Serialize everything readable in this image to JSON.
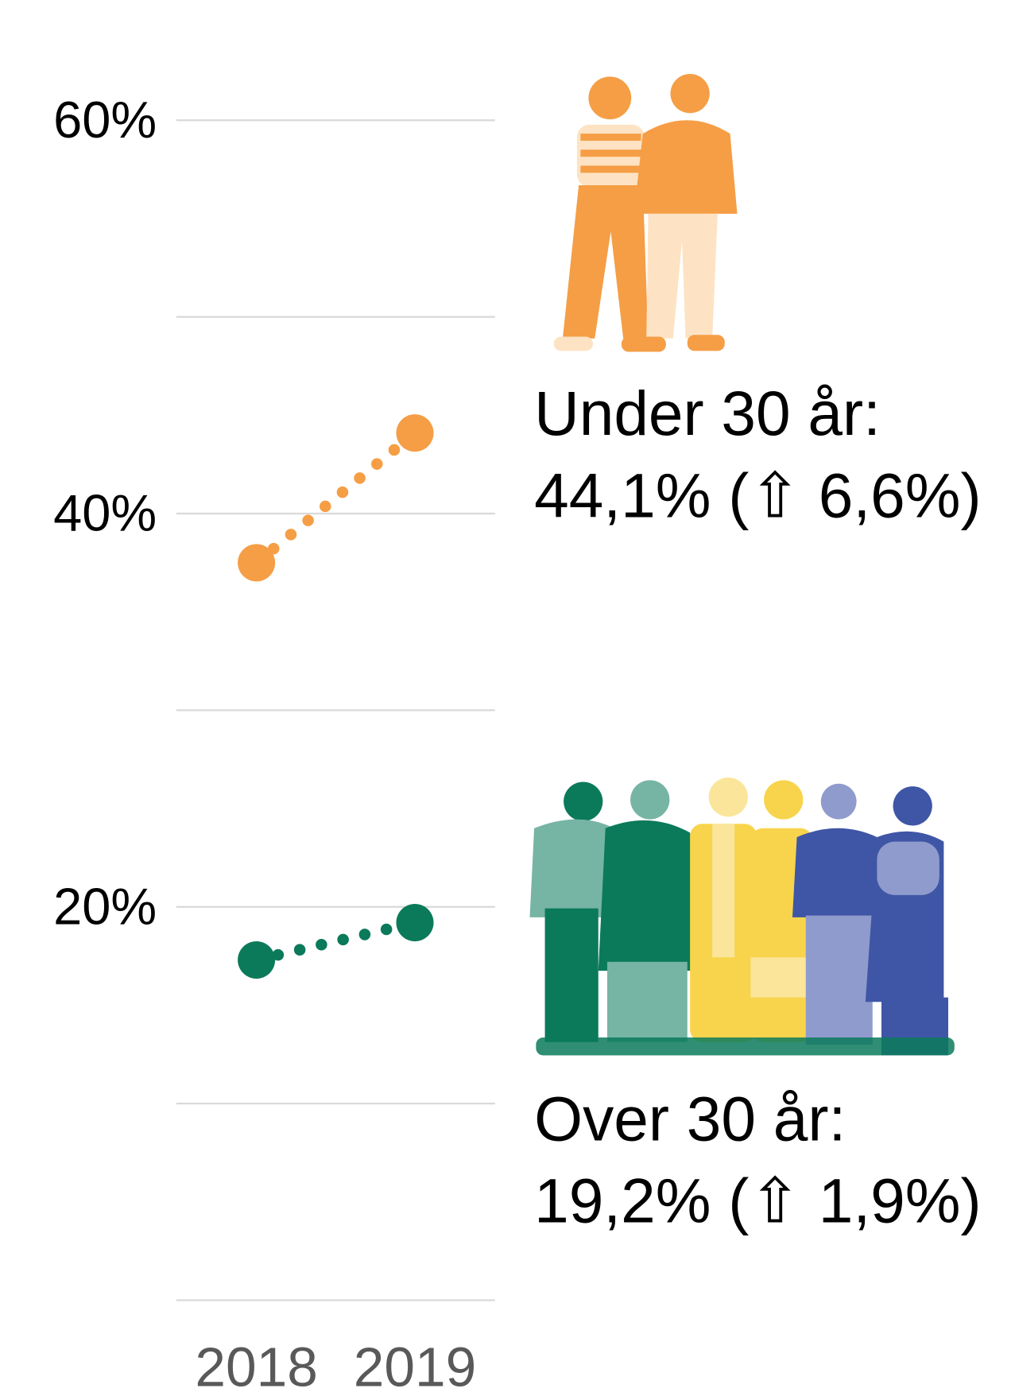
{
  "chart_data": {
    "type": "line",
    "categories": [
      "2018",
      "2019"
    ],
    "series": [
      {
        "name": "Under 30 år:",
        "annotation": "44,1% (⇧ 6,6%)",
        "color": "#f59e45",
        "values": [
          37.5,
          44.1
        ]
      },
      {
        "name": "Over 30 år:",
        "annotation": "19,2% (⇧ 1,9%)",
        "color": "#0b7a5a",
        "values": [
          17.3,
          19.2
        ]
      }
    ],
    "ylim": [
      0,
      60
    ],
    "yticks": [
      {
        "value": 20,
        "label": "20%"
      },
      {
        "value": 40,
        "label": "40%"
      },
      {
        "value": 60,
        "label": "60%"
      }
    ],
    "minor_yticks": [
      0,
      10,
      30,
      50
    ],
    "grid": true
  }
}
